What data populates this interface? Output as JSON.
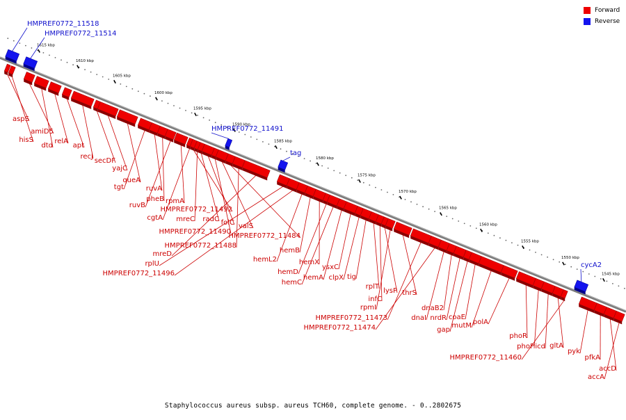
{
  "colors": {
    "forward": "#ee0000",
    "forward_dark": "#8b0000",
    "reverse": "#1414ee",
    "reverse_dark": "#00008b",
    "forward_label": "#cc0000",
    "reverse_label": "#1010cc",
    "backbone": "#7a7a7a"
  },
  "legend": {
    "forward": "Forward",
    "reverse": "Reverse"
  },
  "caption": "Staphylococcus aureus subsp. aureus TCH60, complete genome. - 0..2802675",
  "scale": {
    "ticks": [
      "1615 kbp",
      "1610 kbp",
      "1605 kbp",
      "1600 kbp",
      "1595 kbp",
      "1590 kbp",
      "1585 kbp",
      "1580 kbp",
      "1575 kbp",
      "1570 kbp",
      "1565 kbp",
      "1560 kbp",
      "1555 kbp",
      "1550 kbp",
      "1545 kbp"
    ]
  },
  "genes_reverse": [
    "HMPREF0772_11518",
    "HMPREF0772_11514",
    "HMPREF0772_11491",
    "tag",
    "cycA2"
  ],
  "genes_forward": [
    "aspS",
    "hisS",
    "amiD5",
    "dtd",
    "relA",
    "apt",
    "recJ",
    "secDF",
    "yajC",
    "queA",
    "tgt",
    "ruvA",
    "pheB",
    "ruvB",
    "rpmA",
    "cgtA",
    "HMPREF0772_11492",
    "mreC",
    "radC",
    "folC",
    "HMPREF0772_11490",
    "valS",
    "HMPREF0772_11484",
    "HMPREF0772_11488",
    "mreD",
    "rplU",
    "HMPREF0772_11496",
    "hemL2",
    "hemB",
    "hemX",
    "hemD",
    "hemC",
    "hemA",
    "ysxC",
    "clpX",
    "tig",
    "rplT",
    "infC",
    "lysP",
    "rpmI",
    "thrS",
    "HMPREF0772_11473",
    "HMPREF0772_11474",
    "dnaI",
    "dnaB2",
    "nrdR",
    "gap",
    "coaE",
    "mutM",
    "polA",
    "phoR",
    "phoP",
    "icd",
    "gltA",
    "HMPREF0772_11460",
    "pyk",
    "pfkA",
    "accD",
    "accA"
  ]
}
